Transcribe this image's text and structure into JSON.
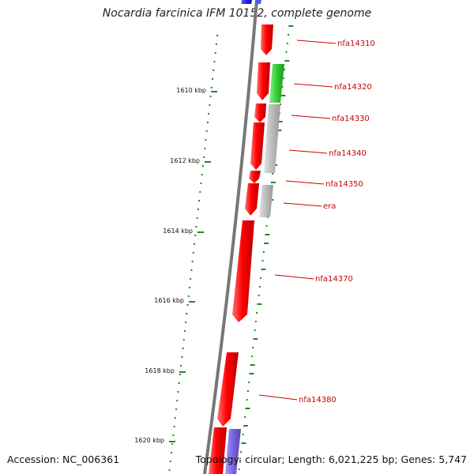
{
  "title": "Nocardia farcinica IFM 10152, complete genome",
  "footer": {
    "accession": "Accession: NC_006361",
    "summary": "Topology: circular; Length: 6,021,225 bp; Genes: 5,747"
  },
  "scale": {
    "ticks": [
      "1610 kbp",
      "1612 kbp",
      "1614 kbp",
      "1616 kbp",
      "1618 kbp",
      "1620 kbp"
    ]
  },
  "genes": [
    {
      "label": "nfa14310",
      "strand": "reverse",
      "color": "#ff0000"
    },
    {
      "label": "nfa14320",
      "strand": "reverse",
      "color": "#ff0000"
    },
    {
      "label": "nfa14330",
      "strand": "reverse",
      "color": "#ff0000"
    },
    {
      "label": "nfa14340",
      "strand": "reverse",
      "color": "#ff0000"
    },
    {
      "label": "nfa14350",
      "strand": "reverse",
      "color": "#ff0000"
    },
    {
      "label": "era",
      "strand": "reverse",
      "color": "#ff0000"
    },
    {
      "label": "nfa14370",
      "strand": "reverse",
      "color": "#ff0000"
    },
    {
      "label": "nfa14380",
      "strand": "reverse",
      "color": "#ff0000"
    }
  ],
  "colors": {
    "cds": "#ff0000",
    "rna_green": "#33cc33",
    "pseudo_gray": "#bbbbbb",
    "blue": "#2222ee",
    "purple": "#7766dd",
    "backbone": "#777777",
    "gc_ticks": "#228822",
    "labels": "#cc0000"
  }
}
